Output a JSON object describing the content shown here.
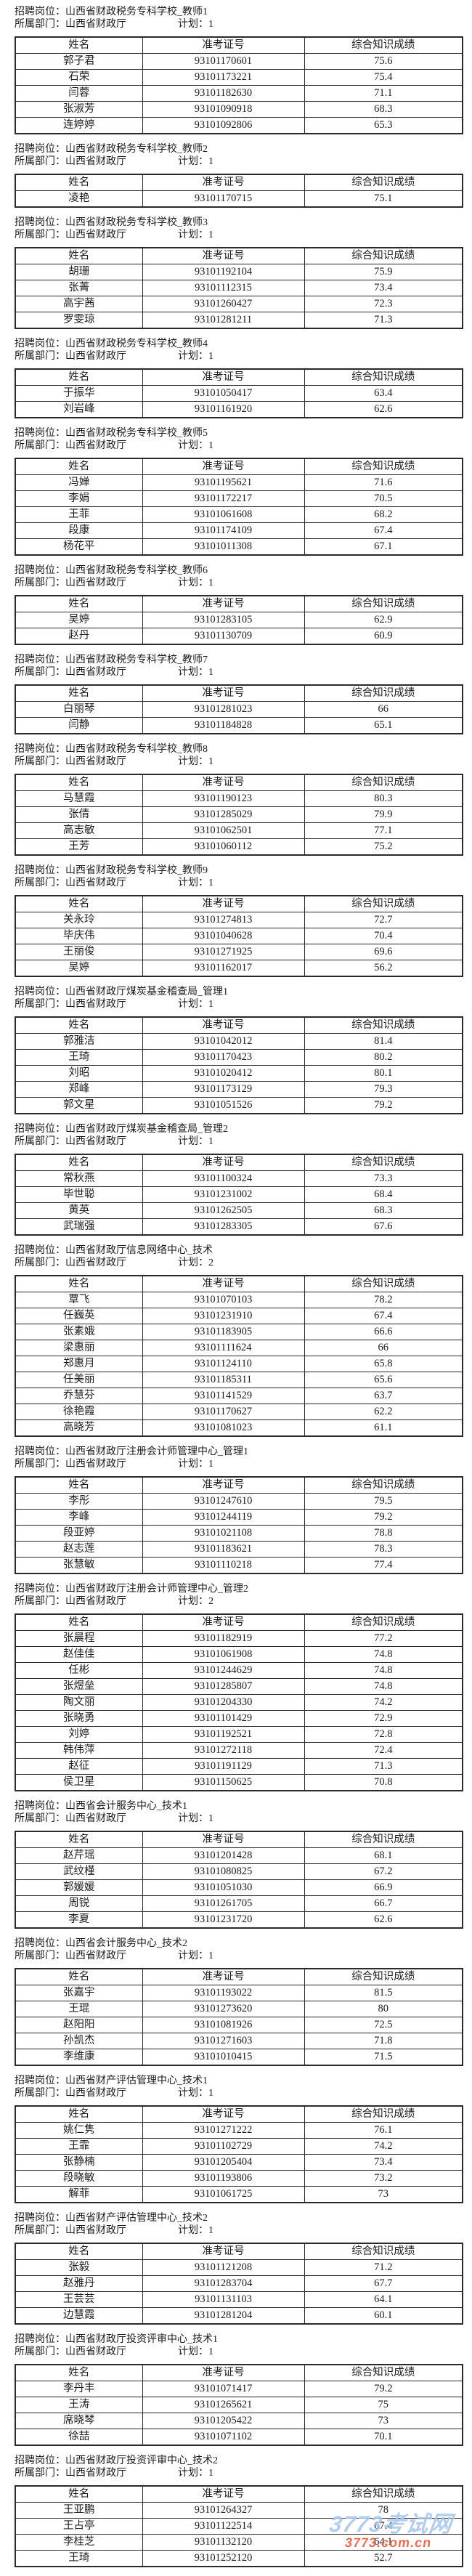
{
  "labels": {
    "position_prefix": "招聘岗位：",
    "department_prefix": "所属部门：",
    "plan_prefix": "计划：",
    "columns": [
      "姓名",
      "准考证号",
      "综合知识成绩"
    ]
  },
  "colors": {
    "text": "#1c1c1c",
    "table_border": "#2a2a2a",
    "watermark_name": "#a9c8ea",
    "watermark_url": "#e25b3d"
  },
  "watermark": {
    "site_name": "3773考试网",
    "site_url": "3773.com.cn"
  },
  "sections": [
    {
      "position": "山西省财政税务专科学校_教师1",
      "department": "山西省财政厅",
      "plan": "1",
      "rows": [
        {
          "name": "郭子君",
          "ticket": "93101170601",
          "score": "75.6"
        },
        {
          "name": "石荣",
          "ticket": "93101173221",
          "score": "75.4"
        },
        {
          "name": "闫蓉",
          "ticket": "93101182630",
          "score": "71.1"
        },
        {
          "name": "张淑芳",
          "ticket": "93101090918",
          "score": "68.3"
        },
        {
          "name": "连婷婷",
          "ticket": "93101092806",
          "score": "65.3"
        }
      ]
    },
    {
      "position": "山西省财政税务专科学校_教师2",
      "department": "山西省财政厅",
      "plan": "1",
      "rows": [
        {
          "name": "凌艳",
          "ticket": "93101170715",
          "score": "75.1"
        }
      ]
    },
    {
      "position": "山西省财政税务专科学校_教师3",
      "department": "山西省财政厅",
      "plan": "1",
      "rows": [
        {
          "name": "胡珊",
          "ticket": "93101192104",
          "score": "75.9"
        },
        {
          "name": "张菁",
          "ticket": "93101112315",
          "score": "73.4"
        },
        {
          "name": "高宇茜",
          "ticket": "93101260427",
          "score": "72.3"
        },
        {
          "name": "罗雯琼",
          "ticket": "93101281211",
          "score": "71.3"
        }
      ]
    },
    {
      "position": "山西省财政税务专科学校_教师4",
      "department": "山西省财政厅",
      "plan": "1",
      "rows": [
        {
          "name": "于振华",
          "ticket": "93101050417",
          "score": "63.4"
        },
        {
          "name": "刘岩峰",
          "ticket": "93101161920",
          "score": "62.6"
        }
      ]
    },
    {
      "position": "山西省财政税务专科学校_教师5",
      "department": "山西省财政厅",
      "plan": "1",
      "rows": [
        {
          "name": "冯婵",
          "ticket": "93101195621",
          "score": "71.6"
        },
        {
          "name": "李娟",
          "ticket": "93101172217",
          "score": "70.5"
        },
        {
          "name": "王菲",
          "ticket": "93101061608",
          "score": "68.2"
        },
        {
          "name": "段康",
          "ticket": "93101174109",
          "score": "67.4"
        },
        {
          "name": "杨花平",
          "ticket": "93101011308",
          "score": "67.1"
        }
      ]
    },
    {
      "position": "山西省财政税务专科学校_教师6",
      "department": "山西省财政厅",
      "plan": "1",
      "rows": [
        {
          "name": "吴婷",
          "ticket": "93101283105",
          "score": "62.9"
        },
        {
          "name": "赵丹",
          "ticket": "93101130709",
          "score": "60.9"
        }
      ]
    },
    {
      "position": "山西省财政税务专科学校_教师7",
      "department": "山西省财政厅",
      "plan": "1",
      "rows": [
        {
          "name": "白丽琴",
          "ticket": "93101281023",
          "score": "66"
        },
        {
          "name": "闫静",
          "ticket": "93101184828",
          "score": "65.1"
        }
      ]
    },
    {
      "position": "山西省财政税务专科学校_教师8",
      "department": "山西省财政厅",
      "plan": "1",
      "rows": [
        {
          "name": "马慧霞",
          "ticket": "93101190123",
          "score": "80.3"
        },
        {
          "name": "张倩",
          "ticket": "93101285029",
          "score": "79.9"
        },
        {
          "name": "高志敏",
          "ticket": "93101062501",
          "score": "77.1"
        },
        {
          "name": "王芳",
          "ticket": "93101060112",
          "score": "75.2"
        }
      ]
    },
    {
      "position": "山西省财政税务专科学校_教师9",
      "department": "山西省财政厅",
      "plan": "1",
      "rows": [
        {
          "name": "关永玲",
          "ticket": "93101274813",
          "score": "72.7"
        },
        {
          "name": "毕庆伟",
          "ticket": "93101040628",
          "score": "70.4"
        },
        {
          "name": "王丽俊",
          "ticket": "93101271925",
          "score": "69.6"
        },
        {
          "name": "吴婷",
          "ticket": "93101162017",
          "score": "56.2"
        }
      ]
    },
    {
      "position": "山西省财政厅煤炭基金稽查局_管理1",
      "department": "山西省财政厅",
      "plan": "1",
      "rows": [
        {
          "name": "郭雅洁",
          "ticket": "93101042012",
          "score": "81.4"
        },
        {
          "name": "王琦",
          "ticket": "93101170423",
          "score": "80.2"
        },
        {
          "name": "刘昭",
          "ticket": "93101020412",
          "score": "80.1"
        },
        {
          "name": "郑峰",
          "ticket": "93101173129",
          "score": "79.3"
        },
        {
          "name": "郭文星",
          "ticket": "93101051526",
          "score": "79.2"
        }
      ]
    },
    {
      "position": "山西省财政厅煤炭基金稽查局_管理2",
      "department": "山西省财政厅",
      "plan": "1",
      "rows": [
        {
          "name": "常秋燕",
          "ticket": "93101100324",
          "score": "73.3"
        },
        {
          "name": "毕世聪",
          "ticket": "93101231002",
          "score": "68.4"
        },
        {
          "name": "黄英",
          "ticket": "93101262505",
          "score": "68.3"
        },
        {
          "name": "武瑞强",
          "ticket": "93101283305",
          "score": "67.6"
        }
      ]
    },
    {
      "position": "山西省财政厅信息网络中心_技术",
      "department": "山西省财政厅",
      "plan": "2",
      "rows": [
        {
          "name": "覃飞",
          "ticket": "93101070103",
          "score": "78.2"
        },
        {
          "name": "任巍英",
          "ticket": "93101231910",
          "score": "67.4"
        },
        {
          "name": "张素娥",
          "ticket": "93101183905",
          "score": "66.6"
        },
        {
          "name": "梁惠丽",
          "ticket": "93101111624",
          "score": "66"
        },
        {
          "name": "郑惠月",
          "ticket": "93101124110",
          "score": "65.8"
        },
        {
          "name": "任美丽",
          "ticket": "93101185311",
          "score": "65.6"
        },
        {
          "name": "乔慧芬",
          "ticket": "93101141529",
          "score": "63.7"
        },
        {
          "name": "徐艳霞",
          "ticket": "93101170627",
          "score": "62.2"
        },
        {
          "name": "高晓芳",
          "ticket": "93101081023",
          "score": "61.1"
        }
      ]
    },
    {
      "position": "山西省财政厅注册会计师管理中心_管理1",
      "department": "山西省财政厅",
      "plan": "1",
      "rows": [
        {
          "name": "李彤",
          "ticket": "93101247610",
          "score": "79.5"
        },
        {
          "name": "李峰",
          "ticket": "93101244119",
          "score": "79.2"
        },
        {
          "name": "段亚婷",
          "ticket": "93101021108",
          "score": "78.8"
        },
        {
          "name": "赵志莲",
          "ticket": "93101183621",
          "score": "78.3"
        },
        {
          "name": "张慧敏",
          "ticket": "93101110218",
          "score": "77.4"
        }
      ]
    },
    {
      "position": "山西省财政厅注册会计师管理中心_管理2",
      "department": "山西省财政厅",
      "plan": "2",
      "rows": [
        {
          "name": "张晨程",
          "ticket": "93101182919",
          "score": "77.2"
        },
        {
          "name": "赵佳佳",
          "ticket": "93101061908",
          "score": "74.8"
        },
        {
          "name": "任彬",
          "ticket": "93101244629",
          "score": "74.8"
        },
        {
          "name": "张煜垒",
          "ticket": "93101285807",
          "score": "74.8"
        },
        {
          "name": "陶文丽",
          "ticket": "93101204330",
          "score": "74.2"
        },
        {
          "name": "张晓勇",
          "ticket": "93101101429",
          "score": "72.9"
        },
        {
          "name": "刘婷",
          "ticket": "93101192521",
          "score": "72.8"
        },
        {
          "name": "韩伟萍",
          "ticket": "93101272118",
          "score": "72.4"
        },
        {
          "name": "赵征",
          "ticket": "93101191129",
          "score": "71.3"
        },
        {
          "name": "侯卫星",
          "ticket": "93101150625",
          "score": "70.8"
        }
      ]
    },
    {
      "position": "山西省会计服务中心_技术1",
      "department": "山西省财政厅",
      "plan": "1",
      "rows": [
        {
          "name": "赵芹瑶",
          "ticket": "93101201428",
          "score": "68.1"
        },
        {
          "name": "武纹槿",
          "ticket": "93101080825",
          "score": "67.2"
        },
        {
          "name": "郭媛媛",
          "ticket": "93101051030",
          "score": "66.9"
        },
        {
          "name": "周锐",
          "ticket": "93101261705",
          "score": "66.7"
        },
        {
          "name": "李夏",
          "ticket": "93101231720",
          "score": "62.6"
        }
      ]
    },
    {
      "position": "山西省会计服务中心_技术2",
      "department": "山西省财政厅",
      "plan": "1",
      "rows": [
        {
          "name": "张嘉宇",
          "ticket": "93101193022",
          "score": "81.5"
        },
        {
          "name": "王琨",
          "ticket": "93101273620",
          "score": "80"
        },
        {
          "name": "赵阳阳",
          "ticket": "93101081926",
          "score": "72.5"
        },
        {
          "name": "孙凯杰",
          "ticket": "93101271603",
          "score": "71.8"
        },
        {
          "name": "李维康",
          "ticket": "93101010415",
          "score": "71.5"
        }
      ]
    },
    {
      "position": "山西省财产评估管理中心_技术1",
      "department": "山西省财政厅",
      "plan": "1",
      "rows": [
        {
          "name": "姚仁隽",
          "ticket": "93101271222",
          "score": "76.1"
        },
        {
          "name": "王霏",
          "ticket": "93101102729",
          "score": "74.2"
        },
        {
          "name": "张静楠",
          "ticket": "93101205404",
          "score": "73.4"
        },
        {
          "name": "段晓敏",
          "ticket": "93101193806",
          "score": "73.2"
        },
        {
          "name": "解菲",
          "ticket": "93101061725",
          "score": "73"
        }
      ]
    },
    {
      "position": "山西省财产评估管理中心_技术2",
      "department": "山西省财政厅",
      "plan": "1",
      "rows": [
        {
          "name": "张毅",
          "ticket": "93101121208",
          "score": "71.2"
        },
        {
          "name": "赵雅丹",
          "ticket": "93101283704",
          "score": "67.7"
        },
        {
          "name": "王芸芸",
          "ticket": "93101131103",
          "score": "64.1"
        },
        {
          "name": "边慧霞",
          "ticket": "93101281204",
          "score": "60.1"
        }
      ]
    },
    {
      "position": "山西省财政厅投资评审中心_技术1",
      "department": "山西省财政厅",
      "plan": "1",
      "rows": [
        {
          "name": "李丹丰",
          "ticket": "93101071417",
          "score": "79.2"
        },
        {
          "name": "王涛",
          "ticket": "93101265621",
          "score": "75"
        },
        {
          "name": "席晓琴",
          "ticket": "93101205422",
          "score": "73"
        },
        {
          "name": "徐喆",
          "ticket": "93101071102",
          "score": "70.1"
        }
      ]
    },
    {
      "position": "山西省财政厅投资评审中心_技术2",
      "department": "山西省财政厅",
      "plan": "1",
      "rows": [
        {
          "name": "王亚鹏",
          "ticket": "93101264327",
          "score": "78"
        },
        {
          "name": "王占亭",
          "ticket": "93101122514",
          "score": "67.4"
        },
        {
          "name": "李桂芝",
          "ticket": "93101132120",
          "score": "64.1"
        },
        {
          "name": "王琦",
          "ticket": "93101252120",
          "score": "52.7"
        }
      ]
    }
  ]
}
